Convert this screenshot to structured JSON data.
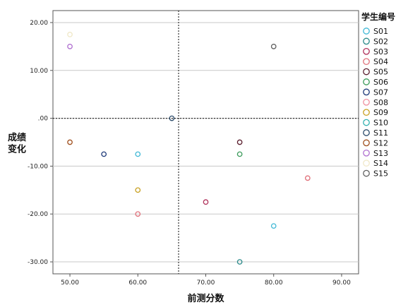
{
  "chart_data": {
    "type": "scatter",
    "title": "",
    "xlabel": "前测分数",
    "ylabel": "成绩变化",
    "xlim": [
      47.5,
      92.5
    ],
    "ylim": [
      -32.5,
      22.5
    ],
    "x_ticks": [
      "50.00",
      "60.00",
      "70.00",
      "80.00",
      "90.00"
    ],
    "y_ticks": [
      "20.00",
      "10.00",
      ".00",
      "-10.00",
      "-20.00",
      "-30.00"
    ],
    "reference_lines": {
      "x": 66,
      "y": 0,
      "style": "dotted"
    },
    "grid": "horizontal",
    "legend_title": "学生编号",
    "legend_position": "right",
    "series": [
      {
        "name": "S01",
        "color": "#3fb8d6",
        "x": [
          80,
          60
        ],
        "y": [
          -22.5,
          -7.5
        ]
      },
      {
        "name": "S02",
        "color": "#2a8a8a",
        "x": [
          75
        ],
        "y": [
          -30
        ]
      },
      {
        "name": "S03",
        "color": "#b0305a",
        "x": [
          70
        ],
        "y": [
          -17.5
        ]
      },
      {
        "name": "S04",
        "color": "#e0707a",
        "x": [
          85,
          60
        ],
        "y": [
          -12.5,
          -20
        ]
      },
      {
        "name": "S05",
        "color": "#5a1e2e",
        "x": [
          75
        ],
        "y": [
          -5
        ]
      },
      {
        "name": "S06",
        "color": "#3a9a5a",
        "x": [
          75
        ],
        "y": [
          -7.5
        ]
      },
      {
        "name": "S07",
        "color": "#1e3a7a",
        "x": [
          55
        ],
        "y": [
          -7.5
        ]
      },
      {
        "name": "S08",
        "color": "#f090a0",
        "x": [],
        "y": []
      },
      {
        "name": "S09",
        "color": "#c8a020",
        "x": [
          60
        ],
        "y": [
          -15
        ]
      },
      {
        "name": "S10",
        "color": "#30b0b0",
        "x": [],
        "y": []
      },
      {
        "name": "S11",
        "color": "#2a4a6a",
        "x": [
          65
        ],
        "y": [
          0
        ]
      },
      {
        "name": "S12",
        "color": "#a0501e",
        "x": [
          50
        ],
        "y": [
          -5
        ]
      },
      {
        "name": "S13",
        "color": "#b070d0",
        "x": [
          50
        ],
        "y": [
          15
        ]
      },
      {
        "name": "S14",
        "color": "#f0e8c8",
        "x": [
          50
        ],
        "y": [
          17.5
        ]
      },
      {
        "name": "S15",
        "color": "#606060",
        "x": [
          80
        ],
        "y": [
          15
        ]
      }
    ]
  }
}
